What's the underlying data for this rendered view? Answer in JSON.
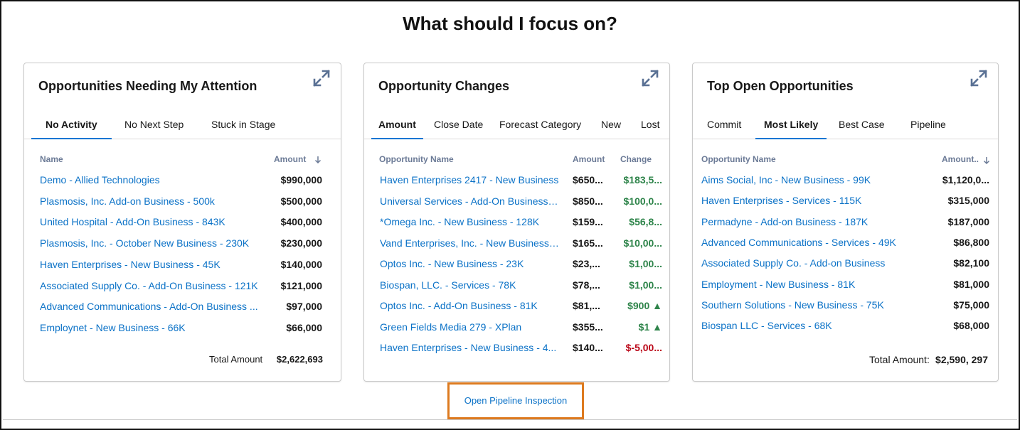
{
  "page": {
    "title": "What should I focus on?"
  },
  "colors": {
    "link": "#0b72c7",
    "positive": "#2e844a",
    "negative": "#ba0517",
    "highlight_box": "#dd7a1f",
    "tab_active": "#0176d3"
  },
  "cards": {
    "attention": {
      "title": "Opportunities Needing My Attention",
      "expand_icon": "expand-icon",
      "tabs": [
        "No Activity",
        "No Next Step",
        "Stuck in Stage"
      ],
      "active_tab": "No Activity",
      "columns": {
        "name": "Name",
        "amount": "Amount"
      },
      "sort_icon": "arrow-down-icon",
      "rows": [
        {
          "name": "Demo - Allied Technologies",
          "amount": "$990,000"
        },
        {
          "name": "Plasmosis, Inc. Add-on Business - 500k",
          "amount": "$500,000"
        },
        {
          "name": "United Hospital - Add-On Business - 843K",
          "amount": "$400,000"
        },
        {
          "name": "Plasmosis, Inc. - October New Business - 230K",
          "amount": "$230,000"
        },
        {
          "name": "Haven Enterprises - New Business - 45K",
          "amount": "$140,000"
        },
        {
          "name": "Associated Supply Co. - Add-On Business - 121K",
          "amount": "$121,000"
        },
        {
          "name": "Advanced Communications - Add-On Business ...",
          "amount": "$97,000"
        },
        {
          "name": "Employnet - New Business - 66K",
          "amount": "$66,000"
        }
      ],
      "total_label": "Total Amount",
      "total_value": "$2,622,693"
    },
    "changes": {
      "title": "Opportunity Changes",
      "expand_icon": "expand-icon",
      "tabs": [
        "Amount",
        "Close Date",
        "Forecast Category",
        "New",
        "Lost"
      ],
      "active_tab": "Amount",
      "columns": {
        "name": "Opportunity Name",
        "amount": "Amount",
        "change": "Change"
      },
      "rows": [
        {
          "name": "Haven Enterprises 2417 - New Business",
          "amount": "$650...",
          "change": "$183,5...",
          "direction": "pos"
        },
        {
          "name": "Universal Services - Add-On Business ...",
          "amount": "$850...",
          "change": "$100,0...",
          "direction": "pos"
        },
        {
          "name": "*Omega Inc. - New Business - 128K",
          "amount": "$159...",
          "change": "$56,8...",
          "direction": "pos"
        },
        {
          "name": "Vand Enterprises, Inc. - New Business ...",
          "amount": "$165...",
          "change": "$10,00...",
          "direction": "pos"
        },
        {
          "name": "Optos Inc. - New Business - 23K",
          "amount": "$23,...",
          "change": "$1,00...",
          "direction": "pos"
        },
        {
          "name": "Biospan, LLC. - Services - 78K",
          "amount": "$78,...",
          "change": "$1,00...",
          "direction": "pos"
        },
        {
          "name": "Optos Inc. - Add-On Business - 81K",
          "amount": "$81,...",
          "change": "$900 ▲",
          "direction": "pos"
        },
        {
          "name": "Green Fields Media 279 - XPlan",
          "amount": "$355...",
          "change": "$1 ▲",
          "direction": "pos"
        },
        {
          "name": "Haven Enterprises - New Business - 4...",
          "amount": "$140...",
          "change": "$-5,00...",
          "direction": "neg"
        }
      ]
    },
    "top_open": {
      "title": "Top Open Opportunities",
      "expand_icon": "expand-icon",
      "tabs": [
        "Commit",
        "Most Likely",
        "Best Case",
        "Pipeline"
      ],
      "active_tab": "Most Likely",
      "columns": {
        "name": "Opportunity Name",
        "amount": "Amount.."
      },
      "sort_icon": "arrow-down-icon",
      "rows": [
        {
          "name": "Aims Social, Inc - New Business - 99K",
          "amount": "$1,120,0..."
        },
        {
          "name": "Haven Enterprises - Services - 115K",
          "amount": "$315,000"
        },
        {
          "name": "Permadyne - Add-on Business - 187K",
          "amount": "$187,000"
        },
        {
          "name": "Advanced Communications - Services - 49K",
          "amount": "$86,800"
        },
        {
          "name": "Associated Supply Co. - Add-on Business",
          "amount": "$82,100"
        },
        {
          "name": "Employment - New Business - 81K",
          "amount": "$81,000"
        },
        {
          "name": "Southern Solutions - New Business - 75K",
          "amount": "$75,000"
        },
        {
          "name": "Biospan LLC - Services - 68K",
          "amount": "$68,000"
        }
      ],
      "total_label": "Total Amount:",
      "total_value": "$2,590, 297"
    }
  },
  "actions": {
    "pipeline_link": "Open Pipeline Inspection"
  }
}
